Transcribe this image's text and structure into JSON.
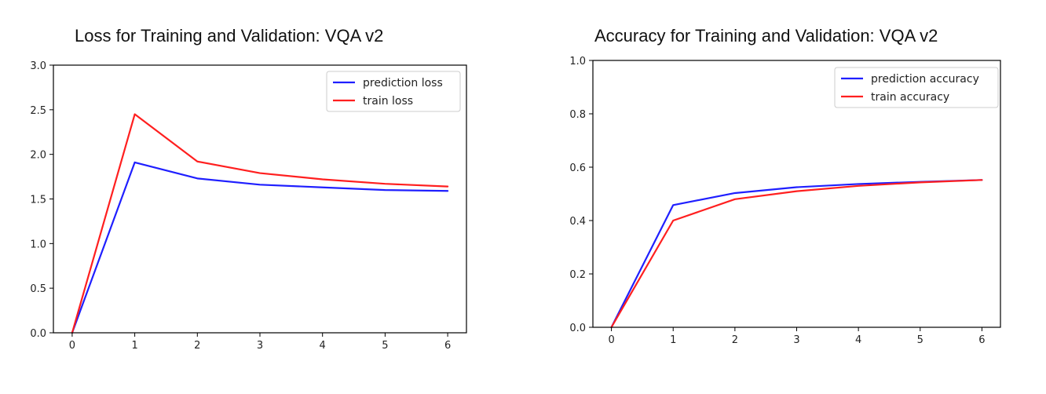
{
  "chart_data": [
    {
      "type": "line",
      "title": "Loss for Training and Validation: VQA v2",
      "xlabel": "",
      "ylabel": "",
      "x": [
        0,
        1,
        2,
        3,
        4,
        5,
        6
      ],
      "xlim": [
        -0.3,
        6.3
      ],
      "ylim": [
        0,
        3.0
      ],
      "xticks": [
        "0",
        "1",
        "2",
        "3",
        "4",
        "5",
        "6"
      ],
      "yticks": [
        "0.0",
        "0.5",
        "1.0",
        "1.5",
        "2.0",
        "2.5",
        "3.0"
      ],
      "legend_position": "top-right",
      "series": [
        {
          "name": "prediction loss",
          "color": "#1f1fff",
          "values": [
            0.0,
            1.91,
            1.73,
            1.66,
            1.63,
            1.6,
            1.59
          ]
        },
        {
          "name": "train loss",
          "color": "#ff1f1f",
          "values": [
            0.0,
            2.45,
            1.92,
            1.79,
            1.72,
            1.67,
            1.64
          ]
        }
      ]
    },
    {
      "type": "line",
      "title": "Accuracy for Training and Validation: VQA v2",
      "xlabel": "",
      "ylabel": "",
      "x": [
        0,
        1,
        2,
        3,
        4,
        5,
        6
      ],
      "xlim": [
        -0.3,
        6.3
      ],
      "ylim": [
        0,
        1.0
      ],
      "xticks": [
        "0",
        "1",
        "2",
        "3",
        "4",
        "5",
        "6"
      ],
      "yticks": [
        "0.0",
        "0.2",
        "0.4",
        "0.6",
        "0.8",
        "1.0"
      ],
      "legend_position": "top-right",
      "series": [
        {
          "name": "prediction accuracy",
          "color": "#1f1fff",
          "values": [
            0.0,
            0.458,
            0.503,
            0.525,
            0.537,
            0.545,
            0.552
          ]
        },
        {
          "name": "train accuracy",
          "color": "#ff1f1f",
          "values": [
            0.0,
            0.4,
            0.48,
            0.51,
            0.53,
            0.543,
            0.552
          ]
        }
      ]
    }
  ]
}
